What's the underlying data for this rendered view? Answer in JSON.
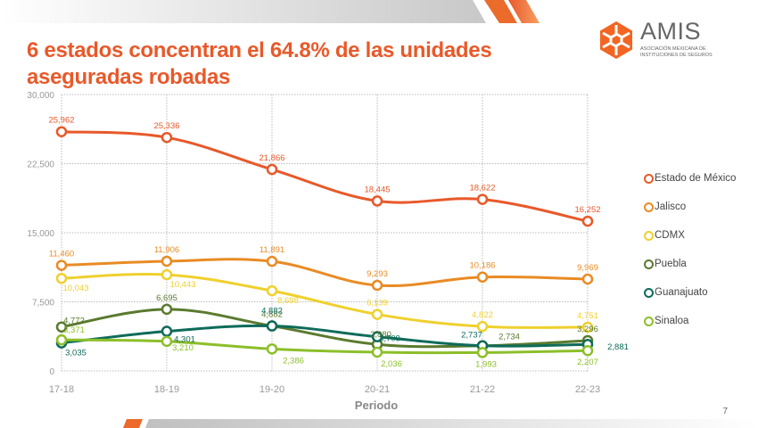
{
  "slide": {
    "title": "6 estados concentran el 64.8% de las unidades aseguradas robadas",
    "page_number": "7",
    "accent_color": "#e8592a"
  },
  "logo": {
    "name": "AMIS",
    "subtitle_line1": "ASOCIACIÓN MEXICANA DE",
    "subtitle_line2": "INSTITUCIONES DE SEGUROS",
    "icon": "hexagon-pinwheel-logo",
    "color": "#f26522"
  },
  "chart_data": {
    "type": "line",
    "title": "6 estados concentran el 64.8% de las unidades aseguradas robadas",
    "xlabel": "Periodo",
    "ylabel": "",
    "categories": [
      "17-18",
      "18-19",
      "19-20",
      "20-21",
      "21-22",
      "22-23"
    ],
    "ylim": [
      0,
      30000
    ],
    "yticks": [
      0,
      7500,
      15000,
      22500,
      30000
    ],
    "ytick_labels": [
      "0",
      "7,500",
      "15,000",
      "22,500",
      "30,000"
    ],
    "grid": true,
    "legend_position": "right",
    "smooth": true,
    "marker": "hollow-circle",
    "series": [
      {
        "name": "Estado de México",
        "color": "#e8592a",
        "values": [
          25962,
          25336,
          21866,
          18445,
          18622,
          16252
        ],
        "labels": [
          "25,962",
          "25,336",
          "21,866",
          "18,445",
          "18,622",
          "16,252"
        ]
      },
      {
        "name": "Jalisco",
        "color": "#e98b24",
        "values": [
          11460,
          11906,
          11891,
          9293,
          10186,
          9969
        ],
        "labels": [
          "11,460",
          "11,906",
          "11,891",
          "9,293",
          "10,186",
          "9,969"
        ]
      },
      {
        "name": "CDMX",
        "color": "#efd02e",
        "values": [
          10043,
          10443,
          8698,
          6139,
          4822,
          4751
        ],
        "labels": [
          "10,043",
          "10,443",
          "8,698",
          "6,139",
          "4,822",
          "4,751"
        ]
      },
      {
        "name": "Puebla",
        "color": "#5a7a2e",
        "values": [
          4772,
          6695,
          4882,
          2880,
          2734,
          3296
        ],
        "labels": [
          "4,772",
          "6,695",
          "4,882",
          "2,880",
          "2,734",
          "3,296"
        ]
      },
      {
        "name": "Guanajuato",
        "color": "#0e6b5a",
        "values": [
          3035,
          4301,
          4882,
          3709,
          2737,
          2881
        ],
        "labels": [
          "3,035",
          "4,301",
          "4,882",
          "3,709",
          "2,737",
          "2,881"
        ]
      },
      {
        "name": "Sinaloa",
        "color": "#8cbf2a",
        "values": [
          3371,
          3210,
          2386,
          2036,
          1993,
          2207
        ],
        "labels": [
          "3,371",
          "3,210",
          "2,386",
          "2,036",
          "1,993",
          "2,207"
        ]
      }
    ]
  }
}
